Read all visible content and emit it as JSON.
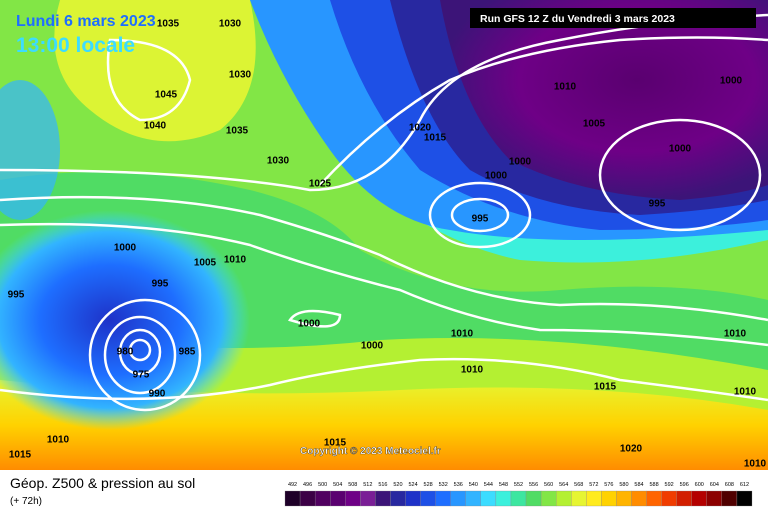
{
  "header": {
    "date": "Lundi 6 mars 2023",
    "time": "13:00 locale",
    "run": "Run GFS 12 Z du Vendredi 3 mars 2023"
  },
  "map": {
    "isobar_labels": [
      1035,
      1030,
      1030,
      1045,
      1040,
      1035,
      1030,
      1025,
      1020,
      1015,
      1010,
      1005,
      1000,
      1000,
      1000,
      1000,
      995,
      995,
      1000,
      1005,
      1010,
      995,
      995,
      1000,
      1000,
      1010,
      1010,
      980,
      985,
      975,
      990,
      1010,
      1015,
      1010,
      1010,
      1015,
      1015,
      1020,
      1010
    ],
    "copyright": "Copyright © 2023 Meteociel.fr"
  },
  "footer": {
    "title": "Géop. Z500 & pression au sol",
    "lead": "(+ 72h)"
  },
  "colorbar": {
    "ticks": [
      492,
      496,
      500,
      504,
      508,
      512,
      516,
      520,
      524,
      528,
      532,
      536,
      540,
      544,
      548,
      552,
      556,
      560,
      564,
      568,
      572,
      576,
      580,
      584,
      588,
      592,
      596,
      600,
      604,
      608,
      612
    ],
    "colors": [
      "#1e0028",
      "#3c0046",
      "#500060",
      "#5a0070",
      "#6e0086",
      "#7a1e96",
      "#3c1478",
      "#2828a0",
      "#1e32c8",
      "#1e50e6",
      "#1e6eff",
      "#2896ff",
      "#32b4ff",
      "#3cdcff",
      "#3cf0dc",
      "#3ce6a0",
      "#50dc64",
      "#82e646",
      "#b4f032",
      "#e6f532",
      "#ffeb1e",
      "#ffd200",
      "#ffb400",
      "#ff8c00",
      "#ff6400",
      "#f03c00",
      "#d21e00",
      "#b40000",
      "#8c0000",
      "#500000",
      "#000000"
    ]
  }
}
